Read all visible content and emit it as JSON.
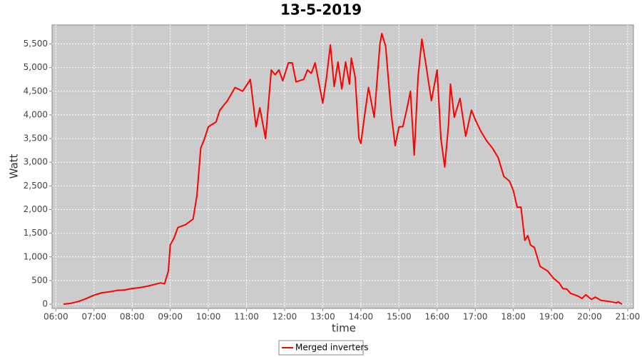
{
  "chart_data": {
    "type": "line",
    "title": "13-5-2019",
    "xlabel": "time",
    "ylabel": "Watt",
    "x": [
      6.2,
      6.4,
      6.6,
      6.8,
      7.0,
      7.2,
      7.4,
      7.6,
      7.8,
      8.0,
      8.2,
      8.4,
      8.6,
      8.75,
      8.85,
      8.95,
      9.0,
      9.1,
      9.2,
      9.4,
      9.6,
      9.7,
      9.8,
      9.9,
      10.0,
      10.2,
      10.3,
      10.5,
      10.7,
      10.9,
      11.1,
      11.25,
      11.35,
      11.5,
      11.65,
      11.75,
      11.85,
      11.95,
      12.1,
      12.2,
      12.3,
      12.5,
      12.6,
      12.7,
      12.8,
      13.0,
      13.1,
      13.2,
      13.3,
      13.4,
      13.5,
      13.6,
      13.7,
      13.75,
      13.85,
      13.95,
      14.0,
      14.1,
      14.2,
      14.35,
      14.5,
      14.55,
      14.65,
      14.8,
      14.9,
      15.0,
      15.1,
      15.2,
      15.3,
      15.4,
      15.5,
      15.6,
      15.7,
      15.85,
      16.0,
      16.1,
      16.2,
      16.3,
      16.35,
      16.45,
      16.6,
      16.75,
      16.9,
      17.0,
      17.15,
      17.3,
      17.45,
      17.6,
      17.75,
      17.9,
      18.0,
      18.1,
      18.2,
      18.3,
      18.38,
      18.45,
      18.55,
      18.7,
      18.9,
      19.05,
      19.2,
      19.3,
      19.4,
      19.5,
      19.7,
      19.8,
      19.9,
      20.05,
      20.15,
      20.3,
      20.5,
      20.7,
      20.75,
      20.85
    ],
    "series": [
      {
        "name": "Merged inverters",
        "color": "#ff0000",
        "values": [
          0,
          20,
          60,
          120,
          190,
          240,
          260,
          290,
          300,
          330,
          350,
          380,
          420,
          450,
          430,
          700,
          1250,
          1400,
          1620,
          1680,
          1800,
          2300,
          3300,
          3500,
          3750,
          3850,
          4100,
          4300,
          4580,
          4500,
          4750,
          3750,
          4150,
          3500,
          4950,
          4850,
          4950,
          4720,
          5100,
          5100,
          4700,
          4750,
          4950,
          4880,
          5100,
          4250,
          4800,
          5480,
          4600,
          5120,
          4550,
          5120,
          4650,
          5200,
          4800,
          3500,
          3400,
          4000,
          4580,
          3950,
          5500,
          5720,
          5450,
          4000,
          3350,
          3750,
          3750,
          4100,
          4500,
          3150,
          4800,
          5600,
          5100,
          4300,
          4950,
          3500,
          2900,
          3800,
          4650,
          3950,
          4350,
          3550,
          4100,
          3900,
          3650,
          3450,
          3300,
          3100,
          2700,
          2600,
          2400,
          2050,
          2050,
          1350,
          1450,
          1250,
          1200,
          800,
          700,
          550,
          450,
          330,
          320,
          230,
          170,
          120,
          200,
          100,
          150,
          80,
          60,
          30,
          50,
          0
        ]
      }
    ],
    "xlim": [
      5.9,
      21.15
    ],
    "ylim": [
      -90,
      5900
    ],
    "xticks": [
      {
        "value": 6,
        "label": "06:00"
      },
      {
        "value": 7,
        "label": "07:00"
      },
      {
        "value": 8,
        "label": "08:00"
      },
      {
        "value": 9,
        "label": "09:00"
      },
      {
        "value": 10,
        "label": "10:00"
      },
      {
        "value": 11,
        "label": "11:00"
      },
      {
        "value": 12,
        "label": "12:00"
      },
      {
        "value": 13,
        "label": "13:00"
      },
      {
        "value": 14,
        "label": "14:00"
      },
      {
        "value": 15,
        "label": "15:00"
      },
      {
        "value": 16,
        "label": "16:00"
      },
      {
        "value": 17,
        "label": "17:00"
      },
      {
        "value": 18,
        "label": "18:00"
      },
      {
        "value": 19,
        "label": "19:00"
      },
      {
        "value": 20,
        "label": "20:00"
      },
      {
        "value": 21,
        "label": "21:00"
      }
    ],
    "yticks": [
      0,
      500,
      {
        "value": 1000,
        "label": "1,000"
      },
      {
        "value": 1500,
        "label": "1,500"
      },
      {
        "value": 2000,
        "label": "2,000"
      },
      {
        "value": 2500,
        "label": "2,500"
      },
      {
        "value": 3000,
        "label": "3,000"
      },
      {
        "value": 3500,
        "label": "3,500"
      },
      {
        "value": 4000,
        "label": "4,000"
      },
      {
        "value": 4500,
        "label": "4,500"
      },
      {
        "value": 5000,
        "label": "5,000"
      },
      {
        "value": 5500,
        "label": "5,500"
      }
    ],
    "grid": true,
    "legend": "bottom",
    "background": "#cccccc"
  }
}
